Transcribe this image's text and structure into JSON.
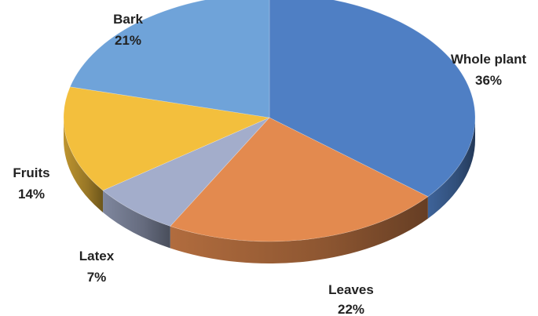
{
  "chart_data": {
    "type": "pie",
    "style": "3d",
    "legend": "none",
    "slices": [
      {
        "label": "Whole plant",
        "value": 36,
        "value_label": "36%",
        "color": "#4f7fc4"
      },
      {
        "label": "Leaves",
        "value": 22,
        "value_label": "22%",
        "color": "#e38a4f"
      },
      {
        "label": "Latex",
        "value": 7,
        "value_label": "7%",
        "color": "#a3adcb"
      },
      {
        "label": "Fruits",
        "value": 14,
        "value_label": "14%",
        "color": "#f3bf3d"
      },
      {
        "label": "Bark",
        "value": 21,
        "value_label": "21%",
        "color": "#6fa3d9"
      }
    ]
  }
}
